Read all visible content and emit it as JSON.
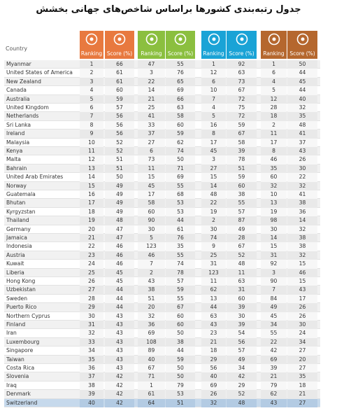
{
  "header": {
    "title": "جدول رتبه‌بندی کشورها براساس شاخص‌های جهانی بخشش"
  },
  "table": {
    "country_header": "Country",
    "groups": [
      {
        "color": "#e8793f",
        "ranking_header": "Ranking",
        "score_header": "Score (%)"
      },
      {
        "color": "#8bbf3f",
        "ranking_header": "Ranking",
        "score_header": "Score (%)"
      },
      {
        "color": "#1aa3d6",
        "ranking_header": "Ranking",
        "score_header": "Score (%)"
      },
      {
        "color": "#b5672e",
        "ranking_header": "Ranking",
        "score_header": "Score (%)"
      }
    ],
    "rows": [
      [
        "Myanmar",
        1,
        66,
        47,
        55,
        1,
        92,
        1,
        50
      ],
      [
        "United States of America",
        2,
        61,
        3,
        76,
        12,
        63,
        6,
        44
      ],
      [
        "New Zealand",
        3,
        61,
        22,
        65,
        6,
        73,
        4,
        45
      ],
      [
        "Canada",
        4,
        60,
        14,
        69,
        10,
        67,
        5,
        44
      ],
      [
        "Australia",
        5,
        59,
        21,
        66,
        7,
        72,
        12,
        40
      ],
      [
        "United Kingdom",
        6,
        57,
        25,
        63,
        4,
        75,
        28,
        32
      ],
      [
        "Netherlands",
        7,
        56,
        41,
        58,
        5,
        72,
        18,
        35
      ],
      [
        "Sri Lanka",
        8,
        56,
        33,
        60,
        16,
        59,
        2,
        48
      ],
      [
        "Ireland",
        9,
        56,
        37,
        59,
        8,
        67,
        11,
        41
      ],
      [
        "Malaysia",
        10,
        52,
        27,
        62,
        17,
        58,
        17,
        37
      ],
      [
        "Kenya",
        11,
        52,
        6,
        74,
        45,
        39,
        8,
        43
      ],
      [
        "Malta",
        12,
        51,
        73,
        50,
        3,
        78,
        46,
        26
      ],
      [
        "Bahrain",
        13,
        51,
        11,
        71,
        27,
        51,
        35,
        30
      ],
      [
        "United Arab Emirates",
        14,
        50,
        15,
        69,
        15,
        59,
        60,
        22
      ],
      [
        "Norway",
        15,
        49,
        45,
        55,
        14,
        60,
        32,
        32
      ],
      [
        "Guatemala",
        16,
        49,
        17,
        68,
        48,
        38,
        10,
        41
      ],
      [
        "Bhutan",
        17,
        49,
        58,
        53,
        22,
        55,
        13,
        38
      ],
      [
        "Kyrgyzstan",
        18,
        49,
        60,
        53,
        19,
        57,
        19,
        36
      ],
      [
        "Thailand",
        19,
        48,
        90,
        44,
        2,
        87,
        98,
        14
      ],
      [
        "Germany",
        20,
        47,
        30,
        61,
        30,
        49,
        30,
        32
      ],
      [
        "Jamaica",
        21,
        47,
        5,
        76,
        74,
        28,
        14,
        38
      ],
      [
        "Indonesia",
        22,
        46,
        123,
        35,
        9,
        67,
        15,
        38
      ],
      [
        "Austria",
        23,
        46,
        46,
        55,
        25,
        52,
        31,
        32
      ],
      [
        "Kuwait",
        24,
        46,
        7,
        74,
        31,
        48,
        92,
        15
      ],
      [
        "Liberia",
        25,
        45,
        2,
        78,
        123,
        11,
        3,
        46
      ],
      [
        "Hong Kong",
        26,
        45,
        43,
        57,
        11,
        63,
        90,
        15
      ],
      [
        "Uzbekistan",
        27,
        44,
        38,
        59,
        62,
        31,
        7,
        43
      ],
      [
        "Sweden",
        28,
        44,
        51,
        55,
        13,
        60,
        84,
        17
      ],
      [
        "Puerto Rico",
        29,
        44,
        20,
        67,
        44,
        39,
        49,
        26
      ],
      [
        "Northern Cyprus",
        30,
        43,
        32,
        60,
        63,
        30,
        45,
        26
      ],
      [
        "Finland",
        31,
        43,
        36,
        60,
        43,
        39,
        34,
        30
      ],
      [
        "Iran",
        32,
        43,
        69,
        50,
        23,
        54,
        55,
        24
      ],
      [
        "Luxembourg",
        33,
        43,
        108,
        38,
        21,
        56,
        22,
        34
      ],
      [
        "Singapore",
        34,
        43,
        89,
        44,
        18,
        57,
        42,
        27
      ],
      [
        "Taiwan",
        35,
        43,
        40,
        59,
        29,
        49,
        69,
        20
      ],
      [
        "Costa Rica",
        36,
        43,
        67,
        50,
        56,
        34,
        39,
        27
      ],
      [
        "Slovenia",
        37,
        42,
        71,
        50,
        40,
        42,
        21,
        35
      ],
      [
        "Iraq",
        38,
        42,
        1,
        79,
        69,
        29,
        79,
        18
      ],
      [
        "Denmark",
        39,
        42,
        61,
        53,
        26,
        52,
        62,
        21
      ],
      [
        "Switzerland",
        40,
        42,
        64,
        51,
        32,
        48,
        43,
        27
      ]
    ]
  }
}
